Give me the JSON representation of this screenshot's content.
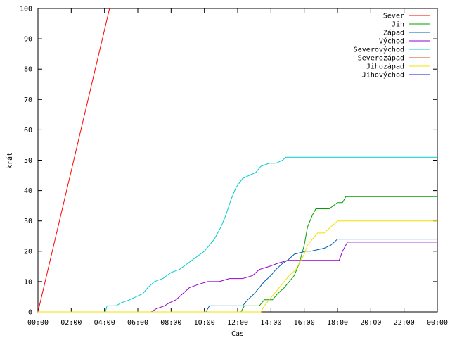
{
  "chart_data": {
    "type": "line",
    "title": "",
    "xlabel": "Čas",
    "ylabel": "krát",
    "xlim": [
      0,
      24
    ],
    "ylim": [
      0,
      100
    ],
    "grid": false,
    "legend_position": "top-right",
    "x_ticks": [
      {
        "value": 0,
        "label": "00:00"
      },
      {
        "value": 2,
        "label": "02:00"
      },
      {
        "value": 4,
        "label": "04:00"
      },
      {
        "value": 6,
        "label": "06:00"
      },
      {
        "value": 8,
        "label": "08:00"
      },
      {
        "value": 10,
        "label": "10:00"
      },
      {
        "value": 12,
        "label": "12:00"
      },
      {
        "value": 14,
        "label": "14:00"
      },
      {
        "value": 16,
        "label": "16:00"
      },
      {
        "value": 18,
        "label": "18:00"
      },
      {
        "value": 20,
        "label": "20:00"
      },
      {
        "value": 22,
        "label": "22:00"
      },
      {
        "value": 24,
        "label": "00:00"
      }
    ],
    "y_ticks": [
      {
        "value": 0,
        "label": "0"
      },
      {
        "value": 10,
        "label": "10"
      },
      {
        "value": 20,
        "label": "20"
      },
      {
        "value": 30,
        "label": "30"
      },
      {
        "value": 40,
        "label": "40"
      },
      {
        "value": 50,
        "label": "50"
      },
      {
        "value": 60,
        "label": "60"
      },
      {
        "value": 70,
        "label": "70"
      },
      {
        "value": 80,
        "label": "80"
      },
      {
        "value": 90,
        "label": "90"
      },
      {
        "value": 100,
        "label": "100"
      }
    ],
    "series": [
      {
        "name": "Sever",
        "color": "#ff0000",
        "x": [
          0,
          4.3
        ],
        "y": [
          0,
          100
        ]
      },
      {
        "name": "Jih",
        "color": "#00a000",
        "x": [
          0,
          12.2,
          12.4,
          13.3,
          13.6,
          14.1,
          14.4,
          14.8,
          15.1,
          15.4,
          15.7,
          16.0,
          16.2,
          16.5,
          16.7,
          17.5,
          18.0,
          18.3,
          18.5,
          24
        ],
        "y": [
          0,
          0,
          2,
          2,
          4,
          4,
          6,
          8,
          10,
          12,
          16,
          22,
          28,
          32,
          34,
          34,
          36,
          36,
          38,
          38
        ]
      },
      {
        "name": "Západ",
        "color": "#0060ad",
        "x": [
          0,
          10.1,
          10.3,
          12.3,
          12.6,
          13.0,
          13.3,
          13.6,
          14.0,
          14.3,
          14.7,
          15.0,
          15.4,
          16.1,
          16.4,
          17.2,
          17.6,
          18.0,
          24
        ],
        "y": [
          0,
          0,
          2,
          2,
          4,
          6,
          8,
          10,
          12,
          14,
          16,
          17,
          19,
          20,
          20,
          21,
          22,
          24,
          24
        ]
      },
      {
        "name": "Východ",
        "color": "#9400d3",
        "x": [
          0,
          6.8,
          7.1,
          7.6,
          7.9,
          8.3,
          8.7,
          9.1,
          9.6,
          10.2,
          10.9,
          11.5,
          12.3,
          12.9,
          13.3,
          13.9,
          14.4,
          15.0,
          16.0,
          17.0,
          18.1,
          18.3,
          18.6,
          24
        ],
        "y": [
          0,
          0,
          1,
          2,
          3,
          4,
          6,
          8,
          9,
          10,
          10,
          11,
          11,
          12,
          14,
          15,
          16,
          17,
          17,
          17,
          17,
          20,
          23,
          23
        ]
      },
      {
        "name": "Severovýchod",
        "color": "#00cccc",
        "x": [
          0,
          4.05,
          4.15,
          4.7,
          5.0,
          5.5,
          5.9,
          6.3,
          6.6,
          7.0,
          7.5,
          8.0,
          8.5,
          9.0,
          9.5,
          10.0,
          10.3,
          10.6,
          11.0,
          11.3,
          11.6,
          11.9,
          12.3,
          12.7,
          13.1,
          13.4,
          13.9,
          14.3,
          14.7,
          14.9,
          24
        ],
        "y": [
          0,
          0,
          2,
          2,
          3,
          4,
          5,
          6,
          8,
          10,
          11,
          13,
          14,
          16,
          18,
          20,
          22,
          24,
          28,
          32,
          37,
          41,
          44,
          45,
          46,
          48,
          49,
          49,
          50,
          51,
          51
        ]
      },
      {
        "name": "Severozápad",
        "color": "#c8500a",
        "x": [],
        "y": []
      },
      {
        "name": "Jihozápad",
        "color": "#f0e000",
        "x": [
          0,
          13.4,
          13.6,
          13.9,
          14.2,
          14.5,
          14.8,
          15.1,
          15.5,
          15.8,
          16.0,
          16.2,
          16.5,
          16.8,
          17.2,
          17.6,
          18.0,
          24
        ],
        "y": [
          0,
          0,
          2,
          4,
          6,
          8,
          10,
          12,
          14,
          17,
          19,
          22,
          24,
          26,
          26,
          28,
          30,
          30
        ]
      },
      {
        "name": "Jihovýchod",
        "color": "#1a1ad0",
        "x": [],
        "y": []
      }
    ]
  }
}
